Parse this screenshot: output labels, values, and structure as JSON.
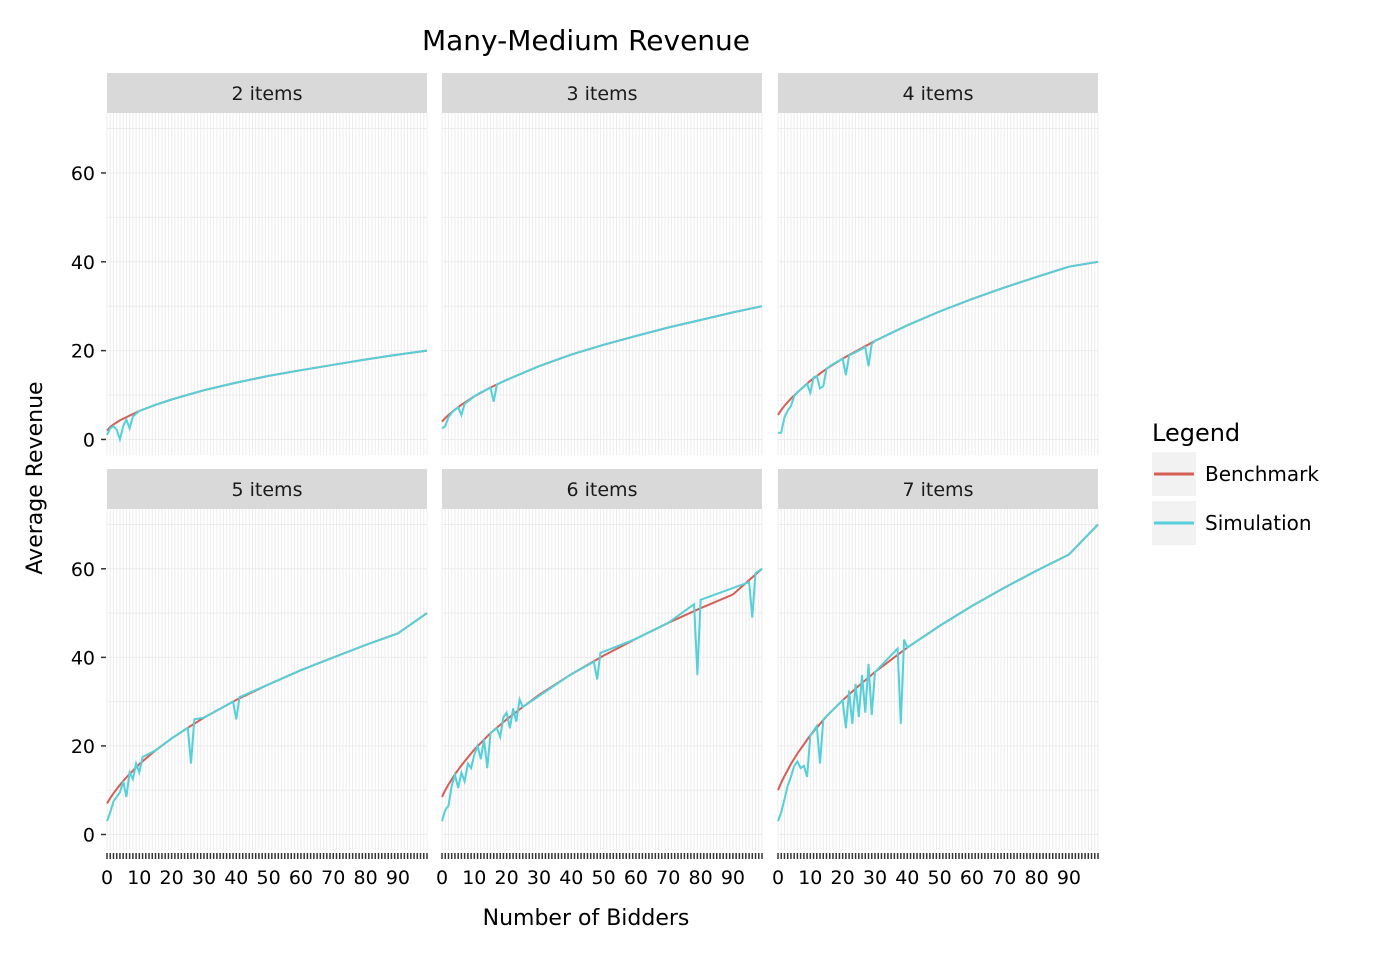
{
  "chart_data": {
    "type": "line",
    "title": "Many-Medium Revenue",
    "xlabel": "Number of Bidders",
    "ylabel": "Average Revenue",
    "xlim": [
      0,
      99
    ],
    "ylim": [
      -3.5,
      73.5
    ],
    "x_ticks": [
      0,
      10,
      20,
      30,
      40,
      50,
      60,
      70,
      80,
      90
    ],
    "y_ticks": [
      0,
      20,
      40,
      60
    ],
    "grid": true,
    "legend": {
      "title": "Legend",
      "position": "right",
      "entries": [
        {
          "name": "Benchmark",
          "color": "#d55e55"
        },
        {
          "name": "Simulation",
          "color": "#55cfd8"
        }
      ]
    },
    "facets": [
      {
        "label": "2 items",
        "benchmark": {
          "x": [
            0,
            1,
            2,
            4,
            6,
            10,
            15,
            20,
            30,
            40,
            50,
            60,
            70,
            80,
            90,
            99
          ],
          "y": [
            2.0,
            2.8,
            3.4,
            4.3,
            5.0,
            6.4,
            7.8,
            9.0,
            11.1,
            12.8,
            14.3,
            15.6,
            16.8,
            18.0,
            19.1,
            20.0
          ]
        },
        "simulation": {
          "x": [
            0,
            1,
            2,
            3,
            4,
            5,
            6,
            7,
            8,
            9,
            10,
            15,
            20,
            30,
            40,
            50,
            60,
            70,
            80,
            90,
            99
          ],
          "y": [
            1.0,
            2.5,
            3.0,
            2.2,
            0.0,
            3.0,
            4.5,
            2.5,
            5.2,
            5.8,
            6.4,
            7.8,
            9.0,
            11.1,
            12.8,
            14.3,
            15.6,
            16.8,
            18.0,
            19.1,
            20.0
          ]
        }
      },
      {
        "label": "3 items",
        "benchmark": {
          "x": [
            0,
            1,
            2,
            4,
            6,
            10,
            15,
            20,
            30,
            40,
            50,
            60,
            70,
            80,
            90,
            99
          ],
          "y": [
            4.0,
            4.8,
            5.5,
            6.7,
            7.8,
            9.7,
            11.7,
            13.4,
            16.5,
            19.1,
            21.3,
            23.3,
            25.2,
            26.9,
            28.6,
            30.0
          ]
        },
        "simulation": {
          "x": [
            0,
            1,
            2,
            3,
            4,
            5,
            6,
            7,
            8,
            10,
            12,
            14,
            15,
            16,
            17,
            20,
            30,
            40,
            50,
            60,
            70,
            80,
            90,
            99
          ],
          "y": [
            2.5,
            3.0,
            5.0,
            6.0,
            6.7,
            7.2,
            5.5,
            8.0,
            8.6,
            9.7,
            10.6,
            11.3,
            11.7,
            8.5,
            12.4,
            13.4,
            16.5,
            19.1,
            21.3,
            23.3,
            25.2,
            26.9,
            28.6,
            30.0
          ]
        }
      },
      {
        "label": "4 items",
        "benchmark": {
          "x": [
            0,
            1,
            2,
            4,
            6,
            10,
            15,
            20,
            30,
            40,
            50,
            60,
            70,
            80,
            90,
            99
          ],
          "y": [
            5.5,
            6.6,
            7.6,
            9.2,
            10.6,
            13.2,
            15.9,
            18.2,
            22.2,
            25.7,
            28.8,
            31.6,
            34.2,
            36.6,
            38.9,
            40.0
          ]
        },
        "simulation": {
          "x": [
            0,
            1,
            2,
            3,
            4,
            5,
            6,
            8,
            9,
            10,
            11,
            12,
            13,
            14,
            15,
            16,
            18,
            20,
            21,
            22,
            25,
            27,
            28,
            29,
            30,
            40,
            50,
            60,
            70,
            80,
            90,
            99
          ],
          "y": [
            1.5,
            1.5,
            5.0,
            6.5,
            7.5,
            9.8,
            10.6,
            11.9,
            12.5,
            10.5,
            14.0,
            14.3,
            11.5,
            12.0,
            15.9,
            16.5,
            17.4,
            18.2,
            14.5,
            18.9,
            20.0,
            20.8,
            16.5,
            21.5,
            22.2,
            25.7,
            28.8,
            31.6,
            34.2,
            36.6,
            38.9,
            40.0
          ]
        }
      },
      {
        "label": "5 items",
        "benchmark": {
          "x": [
            0,
            1,
            2,
            4,
            6,
            10,
            15,
            20,
            25,
            30,
            40,
            50,
            60,
            70,
            80,
            90,
            99
          ],
          "y": [
            7.0,
            8.2,
            9.3,
            11.2,
            12.9,
            15.9,
            19.0,
            21.7,
            24.1,
            26.4,
            30.4,
            33.9,
            37.1,
            40.0,
            42.8,
            45.4,
            50.0
          ]
        },
        "simulation": {
          "x": [
            0,
            1,
            2,
            3,
            4,
            5,
            6,
            7,
            8,
            9,
            10,
            11,
            15,
            20,
            25,
            26,
            27,
            30,
            39,
            40,
            41,
            50,
            60,
            70,
            80,
            90,
            99
          ],
          "y": [
            3.0,
            5.0,
            7.5,
            8.5,
            9.5,
            12.0,
            8.5,
            14.0,
            12.5,
            16.0,
            14.0,
            17.5,
            19.0,
            21.7,
            24.1,
            16.0,
            26.0,
            26.4,
            30.0,
            26.0,
            31.0,
            33.9,
            37.1,
            40.0,
            42.8,
            45.4,
            50.0
          ]
        }
      },
      {
        "label": "6 items",
        "benchmark": {
          "x": [
            0,
            1,
            2,
            4,
            6,
            10,
            15,
            20,
            25,
            30,
            40,
            50,
            60,
            70,
            80,
            90,
            99
          ],
          "y": [
            8.5,
            10.0,
            11.3,
            13.6,
            15.6,
            19.2,
            22.9,
            26.0,
            28.8,
            31.5,
            36.2,
            40.4,
            44.2,
            47.8,
            51.1,
            54.2,
            60.0
          ]
        },
        "simulation": {
          "x": [
            0,
            1,
            2,
            3,
            4,
            5,
            6,
            7,
            8,
            9,
            10,
            11,
            12,
            13,
            14,
            15,
            17,
            18,
            19,
            20,
            21,
            22,
            23,
            24,
            25,
            40,
            47,
            48,
            49,
            60,
            70,
            78,
            79,
            80,
            95,
            96,
            97,
            99
          ],
          "y": [
            3.0,
            5.5,
            6.5,
            11.0,
            13.5,
            10.5,
            14.0,
            12.0,
            16.0,
            15.0,
            18.0,
            20.0,
            17.0,
            21.5,
            15.0,
            22.9,
            24.0,
            22.0,
            26.5,
            27.5,
            24.0,
            28.5,
            25.5,
            30.5,
            28.8,
            36.2,
            39.0,
            35.0,
            41.0,
            44.2,
            47.8,
            52.0,
            36.0,
            53.0,
            57.0,
            49.0,
            59.0,
            60.0
          ]
        }
      },
      {
        "label": "7 items",
        "benchmark": {
          "x": [
            0,
            1,
            2,
            4,
            6,
            10,
            15,
            20,
            25,
            30,
            40,
            50,
            60,
            70,
            80,
            90,
            99
          ],
          "y": [
            10.0,
            11.7,
            13.2,
            15.9,
            18.3,
            22.4,
            26.7,
            30.3,
            33.6,
            36.7,
            42.2,
            47.1,
            51.6,
            55.7,
            59.6,
            63.2,
            70.0
          ]
        },
        "simulation": {
          "x": [
            0,
            1,
            2,
            3,
            4,
            5,
            6,
            7,
            8,
            9,
            10,
            12,
            13,
            14,
            15,
            20,
            21,
            22,
            23,
            24,
            25,
            26,
            27,
            28,
            29,
            30,
            37,
            38,
            39,
            40,
            50,
            60,
            70,
            80,
            90,
            99
          ],
          "y": [
            3.0,
            5.0,
            8.0,
            11.0,
            13.0,
            15.5,
            16.5,
            15.0,
            15.5,
            13.0,
            22.4,
            24.5,
            16.0,
            26.0,
            26.7,
            30.3,
            24.0,
            32.5,
            25.0,
            34.0,
            26.5,
            36.0,
            27.5,
            38.5,
            27.0,
            36.7,
            42.0,
            25.0,
            44.0,
            42.2,
            47.1,
            51.6,
            55.7,
            59.6,
            63.2,
            70.0
          ]
        }
      }
    ]
  }
}
